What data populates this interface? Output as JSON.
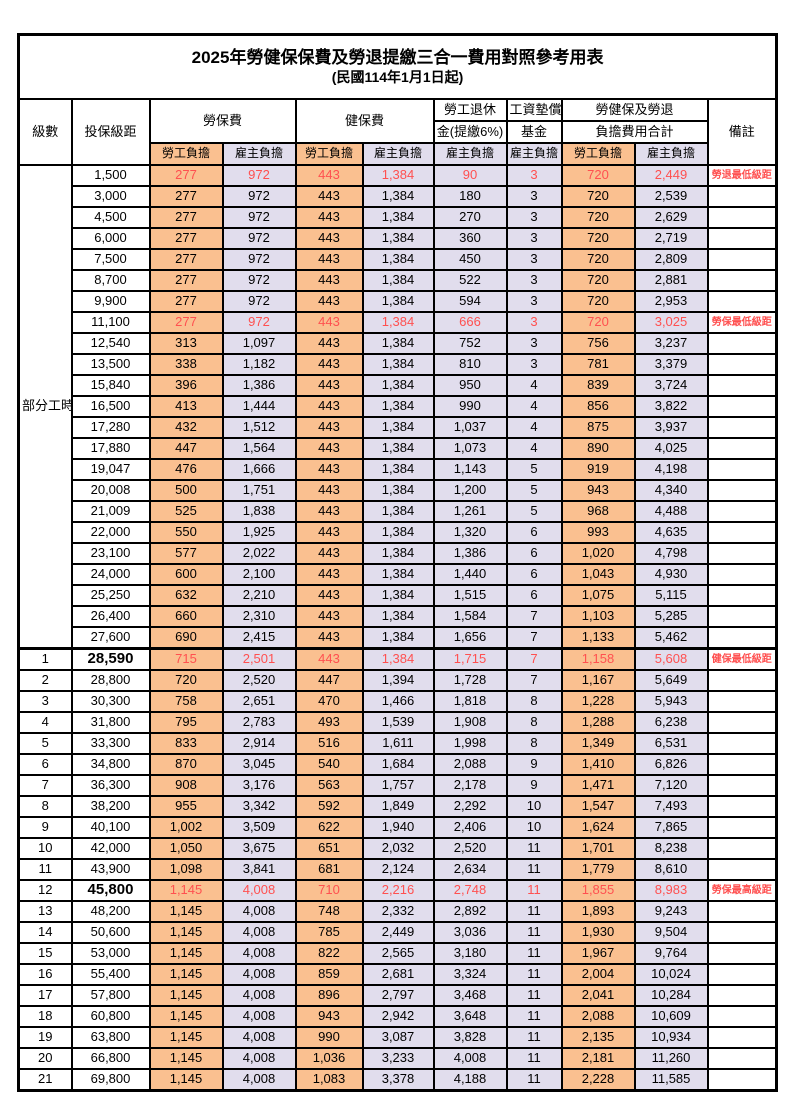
{
  "title": "2025年勞健保保費及勞退提繳三合一費用對照參考用表",
  "subtitle": "(民國114年1月1日起)",
  "colors": {
    "employee_column_orange": "#FAC090",
    "employer_column_lavender": "#E1DDED",
    "highlight_red": "#FF5050"
  },
  "header": {
    "level": "級數",
    "bracket": "投保級距",
    "labor_ins": "勞保費",
    "health_ins": "健保費",
    "pension_line1": "勞工退休",
    "pension_line2": "金(提繳6%)",
    "fund_line1": "工資墊償",
    "fund_line2": "基金",
    "total_line1": "勞健保及勞退",
    "total_line2": "負擔費用合計",
    "remark": "備註",
    "employee": "勞工負擔",
    "employer": "雇主負擔"
  },
  "rows": [
    {
      "lv": "部分工時",
      "span": 23,
      "b": "1,500",
      "v": [
        "277",
        "972",
        "443",
        "1,384",
        "90",
        "3",
        "720",
        "2,449"
      ],
      "rm": "勞退最低級距",
      "red": true
    },
    {
      "b": "3,000",
      "v": [
        "277",
        "972",
        "443",
        "1,384",
        "180",
        "3",
        "720",
        "2,539"
      ],
      "rm": ""
    },
    {
      "b": "4,500",
      "v": [
        "277",
        "972",
        "443",
        "1,384",
        "270",
        "3",
        "720",
        "2,629"
      ],
      "rm": ""
    },
    {
      "b": "6,000",
      "v": [
        "277",
        "972",
        "443",
        "1,384",
        "360",
        "3",
        "720",
        "2,719"
      ],
      "rm": ""
    },
    {
      "b": "7,500",
      "v": [
        "277",
        "972",
        "443",
        "1,384",
        "450",
        "3",
        "720",
        "2,809"
      ],
      "rm": ""
    },
    {
      "b": "8,700",
      "v": [
        "277",
        "972",
        "443",
        "1,384",
        "522",
        "3",
        "720",
        "2,881"
      ],
      "rm": ""
    },
    {
      "b": "9,900",
      "v": [
        "277",
        "972",
        "443",
        "1,384",
        "594",
        "3",
        "720",
        "2,953"
      ],
      "rm": ""
    },
    {
      "b": "11,100",
      "v": [
        "277",
        "972",
        "443",
        "1,384",
        "666",
        "3",
        "720",
        "3,025"
      ],
      "rm": "勞保最低級距",
      "red": true
    },
    {
      "b": "12,540",
      "v": [
        "313",
        "1,097",
        "443",
        "1,384",
        "752",
        "3",
        "756",
        "3,237"
      ],
      "rm": ""
    },
    {
      "b": "13,500",
      "v": [
        "338",
        "1,182",
        "443",
        "1,384",
        "810",
        "3",
        "781",
        "3,379"
      ],
      "rm": ""
    },
    {
      "b": "15,840",
      "v": [
        "396",
        "1,386",
        "443",
        "1,384",
        "950",
        "4",
        "839",
        "3,724"
      ],
      "rm": ""
    },
    {
      "b": "16,500",
      "v": [
        "413",
        "1,444",
        "443",
        "1,384",
        "990",
        "4",
        "856",
        "3,822"
      ],
      "rm": ""
    },
    {
      "b": "17,280",
      "v": [
        "432",
        "1,512",
        "443",
        "1,384",
        "1,037",
        "4",
        "875",
        "3,937"
      ],
      "rm": ""
    },
    {
      "b": "17,880",
      "v": [
        "447",
        "1,564",
        "443",
        "1,384",
        "1,073",
        "4",
        "890",
        "4,025"
      ],
      "rm": ""
    },
    {
      "b": "19,047",
      "v": [
        "476",
        "1,666",
        "443",
        "1,384",
        "1,143",
        "5",
        "919",
        "4,198"
      ],
      "rm": ""
    },
    {
      "b": "20,008",
      "v": [
        "500",
        "1,751",
        "443",
        "1,384",
        "1,200",
        "5",
        "943",
        "4,340"
      ],
      "rm": ""
    },
    {
      "b": "21,009",
      "v": [
        "525",
        "1,838",
        "443",
        "1,384",
        "1,261",
        "5",
        "968",
        "4,488"
      ],
      "rm": ""
    },
    {
      "b": "22,000",
      "v": [
        "550",
        "1,925",
        "443",
        "1,384",
        "1,320",
        "6",
        "993",
        "4,635"
      ],
      "rm": ""
    },
    {
      "b": "23,100",
      "v": [
        "577",
        "2,022",
        "443",
        "1,384",
        "1,386",
        "6",
        "1,020",
        "4,798"
      ],
      "rm": ""
    },
    {
      "b": "24,000",
      "v": [
        "600",
        "2,100",
        "443",
        "1,384",
        "1,440",
        "6",
        "1,043",
        "4,930"
      ],
      "rm": ""
    },
    {
      "b": "25,250",
      "v": [
        "632",
        "2,210",
        "443",
        "1,384",
        "1,515",
        "6",
        "1,075",
        "5,115"
      ],
      "rm": ""
    },
    {
      "b": "26,400",
      "v": [
        "660",
        "2,310",
        "443",
        "1,384",
        "1,584",
        "7",
        "1,103",
        "5,285"
      ],
      "rm": ""
    },
    {
      "b": "27,600",
      "v": [
        "690",
        "2,415",
        "443",
        "1,384",
        "1,656",
        "7",
        "1,133",
        "5,462"
      ],
      "rm": ""
    },
    {
      "lv": "1",
      "span": 1,
      "b": "28,590",
      "v": [
        "715",
        "2,501",
        "443",
        "1,384",
        "1,715",
        "7",
        "1,158",
        "5,608"
      ],
      "rm": "健保最低級距",
      "red": true,
      "big": true,
      "sec": true
    },
    {
      "lv": "2",
      "span": 1,
      "b": "28,800",
      "v": [
        "720",
        "2,520",
        "447",
        "1,394",
        "1,728",
        "7",
        "1,167",
        "5,649"
      ],
      "rm": ""
    },
    {
      "lv": "3",
      "span": 1,
      "b": "30,300",
      "v": [
        "758",
        "2,651",
        "470",
        "1,466",
        "1,818",
        "8",
        "1,228",
        "5,943"
      ],
      "rm": ""
    },
    {
      "lv": "4",
      "span": 1,
      "b": "31,800",
      "v": [
        "795",
        "2,783",
        "493",
        "1,539",
        "1,908",
        "8",
        "1,288",
        "6,238"
      ],
      "rm": ""
    },
    {
      "lv": "5",
      "span": 1,
      "b": "33,300",
      "v": [
        "833",
        "2,914",
        "516",
        "1,611",
        "1,998",
        "8",
        "1,349",
        "6,531"
      ],
      "rm": ""
    },
    {
      "lv": "6",
      "span": 1,
      "b": "34,800",
      "v": [
        "870",
        "3,045",
        "540",
        "1,684",
        "2,088",
        "9",
        "1,410",
        "6,826"
      ],
      "rm": ""
    },
    {
      "lv": "7",
      "span": 1,
      "b": "36,300",
      "v": [
        "908",
        "3,176",
        "563",
        "1,757",
        "2,178",
        "9",
        "1,471",
        "7,120"
      ],
      "rm": ""
    },
    {
      "lv": "8",
      "span": 1,
      "b": "38,200",
      "v": [
        "955",
        "3,342",
        "592",
        "1,849",
        "2,292",
        "10",
        "1,547",
        "7,493"
      ],
      "rm": ""
    },
    {
      "lv": "9",
      "span": 1,
      "b": "40,100",
      "v": [
        "1,002",
        "3,509",
        "622",
        "1,940",
        "2,406",
        "10",
        "1,624",
        "7,865"
      ],
      "rm": ""
    },
    {
      "lv": "10",
      "span": 1,
      "b": "42,000",
      "v": [
        "1,050",
        "3,675",
        "651",
        "2,032",
        "2,520",
        "11",
        "1,701",
        "8,238"
      ],
      "rm": ""
    },
    {
      "lv": "11",
      "span": 1,
      "b": "43,900",
      "v": [
        "1,098",
        "3,841",
        "681",
        "2,124",
        "2,634",
        "11",
        "1,779",
        "8,610"
      ],
      "rm": ""
    },
    {
      "lv": "12",
      "span": 1,
      "b": "45,800",
      "v": [
        "1,145",
        "4,008",
        "710",
        "2,216",
        "2,748",
        "11",
        "1,855",
        "8,983"
      ],
      "rm": "勞保最高級距",
      "red": true,
      "big": true
    },
    {
      "lv": "13",
      "span": 1,
      "b": "48,200",
      "v": [
        "1,145",
        "4,008",
        "748",
        "2,332",
        "2,892",
        "11",
        "1,893",
        "9,243"
      ],
      "rm": ""
    },
    {
      "lv": "14",
      "span": 1,
      "b": "50,600",
      "v": [
        "1,145",
        "4,008",
        "785",
        "2,449",
        "3,036",
        "11",
        "1,930",
        "9,504"
      ],
      "rm": ""
    },
    {
      "lv": "15",
      "span": 1,
      "b": "53,000",
      "v": [
        "1,145",
        "4,008",
        "822",
        "2,565",
        "3,180",
        "11",
        "1,967",
        "9,764"
      ],
      "rm": ""
    },
    {
      "lv": "16",
      "span": 1,
      "b": "55,400",
      "v": [
        "1,145",
        "4,008",
        "859",
        "2,681",
        "3,324",
        "11",
        "2,004",
        "10,024"
      ],
      "rm": ""
    },
    {
      "lv": "17",
      "span": 1,
      "b": "57,800",
      "v": [
        "1,145",
        "4,008",
        "896",
        "2,797",
        "3,468",
        "11",
        "2,041",
        "10,284"
      ],
      "rm": ""
    },
    {
      "lv": "18",
      "span": 1,
      "b": "60,800",
      "v": [
        "1,145",
        "4,008",
        "943",
        "2,942",
        "3,648",
        "11",
        "2,088",
        "10,609"
      ],
      "rm": ""
    },
    {
      "lv": "19",
      "span": 1,
      "b": "63,800",
      "v": [
        "1,145",
        "4,008",
        "990",
        "3,087",
        "3,828",
        "11",
        "2,135",
        "10,934"
      ],
      "rm": ""
    },
    {
      "lv": "20",
      "span": 1,
      "b": "66,800",
      "v": [
        "1,145",
        "4,008",
        "1,036",
        "3,233",
        "4,008",
        "11",
        "2,181",
        "11,260"
      ],
      "rm": ""
    },
    {
      "lv": "21",
      "span": 1,
      "b": "69,800",
      "v": [
        "1,145",
        "4,008",
        "1,083",
        "3,378",
        "4,188",
        "11",
        "2,228",
        "11,585"
      ],
      "rm": ""
    }
  ]
}
